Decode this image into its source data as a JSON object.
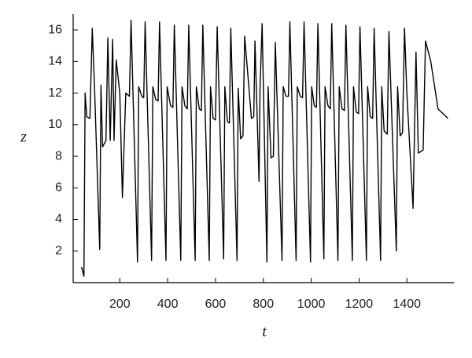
{
  "chart_data": {
    "type": "line",
    "x_label": "t",
    "y_label": "z",
    "color": "#000000",
    "x": [
      40,
      50,
      55,
      62,
      75,
      85,
      95,
      116,
      121,
      128,
      142,
      150,
      160,
      170,
      176,
      185,
      200,
      211,
      225,
      240,
      247,
      274,
      279,
      292,
      300,
      306,
      333,
      338,
      350,
      360,
      366,
      393,
      398,
      412,
      422,
      428,
      455,
      460,
      472,
      482,
      488,
      515,
      520,
      532,
      541,
      547,
      574,
      579,
      590,
      600,
      607,
      634,
      639,
      650,
      658,
      664,
      690,
      695,
      705,
      715,
      722,
      740,
      750,
      760,
      765,
      782,
      786,
      795,
      815,
      820,
      832,
      842,
      850,
      878,
      883,
      895,
      905,
      911,
      937,
      942,
      954,
      964,
      970,
      997,
      1002,
      1013,
      1022,
      1028,
      1053,
      1058,
      1070,
      1080,
      1086,
      1112,
      1117,
      1129,
      1139,
      1145,
      1172,
      1177,
      1188,
      1198,
      1204,
      1231,
      1236,
      1247,
      1257,
      1263,
      1290,
      1295,
      1305,
      1318,
      1325,
      1356,
      1361,
      1372,
      1382,
      1390,
      1400,
      1426,
      1438,
      1448,
      1468,
      1478,
      1500,
      1530,
      1572
    ],
    "values": [
      1.0,
      0.4,
      12.0,
      10.5,
      10.4,
      16.1,
      12.0,
      2.1,
      12.5,
      8.6,
      9.0,
      15.5,
      9.0,
      15.4,
      9.0,
      14.1,
      12.0,
      5.4,
      12.0,
      11.8,
      16.6,
      1.3,
      12.4,
      11.8,
      11.7,
      16.5,
      1.4,
      12.4,
      11.6,
      11.5,
      16.5,
      1.4,
      12.4,
      11.2,
      11.1,
      16.3,
      1.4,
      12.4,
      11.2,
      11.0,
      16.3,
      1.4,
      12.4,
      11.0,
      10.9,
      16.3,
      1.4,
      12.4,
      10.4,
      10.3,
      16.2,
      1.5,
      12.4,
      10.2,
      10.1,
      16.1,
      1.4,
      12.3,
      9.1,
      9.3,
      15.6,
      12.3,
      10.4,
      10.5,
      15.3,
      6.4,
      12.2,
      16.4,
      1.3,
      12.4,
      7.9,
      8.0,
      15.2,
      1.4,
      12.4,
      11.8,
      11.8,
      16.5,
      1.4,
      12.4,
      11.8,
      11.7,
      16.5,
      1.3,
      12.4,
      11.2,
      11.1,
      16.4,
      1.5,
      12.4,
      11.2,
      11.0,
      16.4,
      1.4,
      12.4,
      11.0,
      10.9,
      16.3,
      1.4,
      12.4,
      10.8,
      10.7,
      16.2,
      1.4,
      12.4,
      10.5,
      10.4,
      16.1,
      1.4,
      12.4,
      9.6,
      9.4,
      15.9,
      2.0,
      12.4,
      9.3,
      9.5,
      16.1,
      12.0,
      4.7,
      14.6,
      8.2,
      8.4,
      15.3,
      14.0,
      11.0,
      10.4
    ],
    "xlim": [
      5,
      1590
    ],
    "ylim": [
      0,
      16.9
    ],
    "xticks": [
      200,
      400,
      600,
      800,
      1000,
      1200,
      1400
    ],
    "yticks": [
      2,
      4,
      6,
      8,
      10,
      12,
      14,
      16
    ]
  }
}
